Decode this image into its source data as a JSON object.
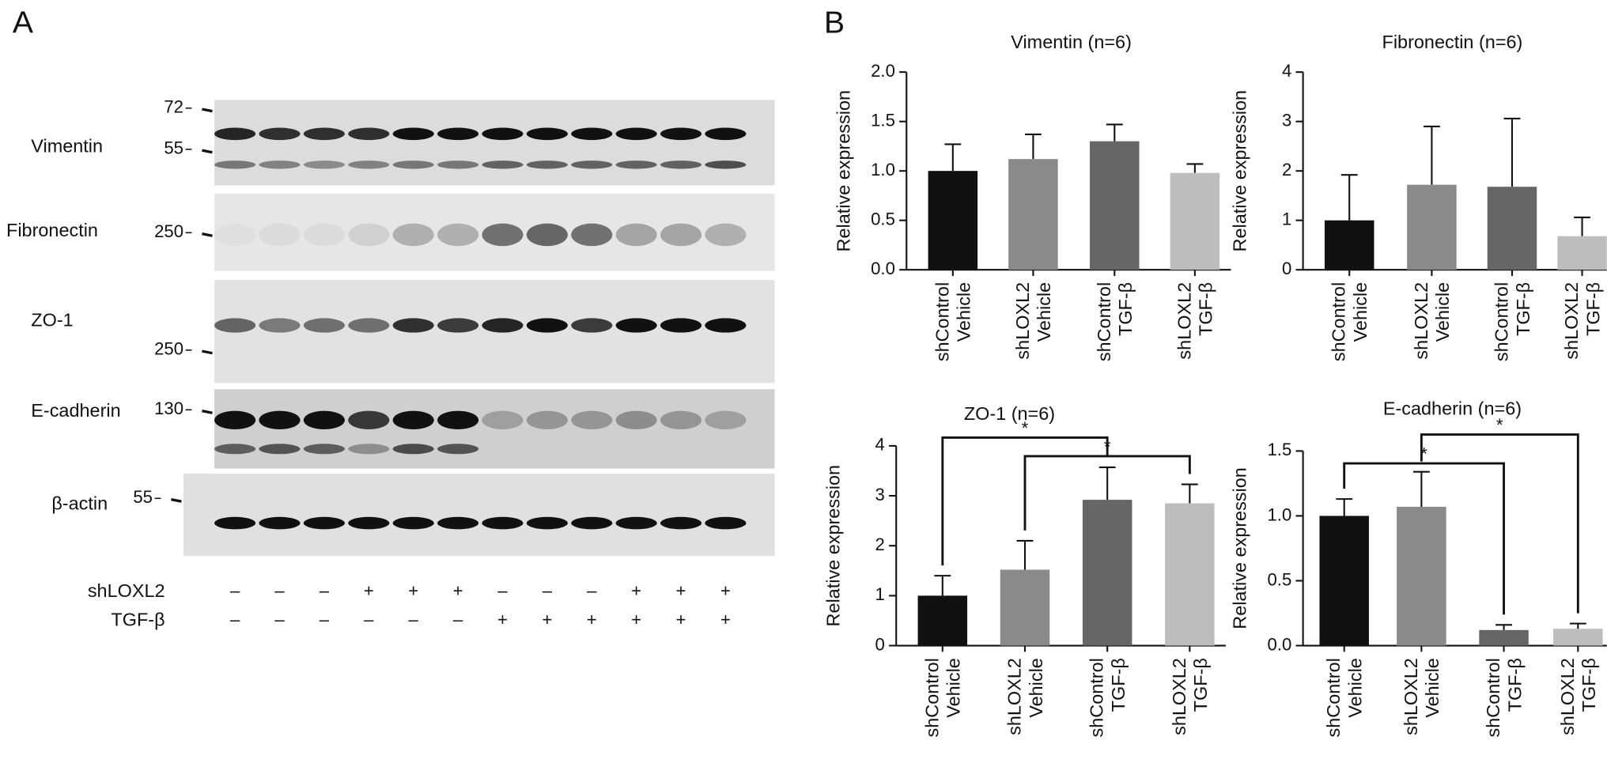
{
  "panel_labels": [
    "A",
    "B"
  ],
  "blot": {
    "rows": [
      {
        "label": "Vimentin",
        "markers": [
          72,
          55
        ]
      },
      {
        "label": "Fibronectin",
        "markers": [
          250
        ]
      },
      {
        "label": "ZO-1",
        "markers": [
          250
        ]
      },
      {
        "label": "E-cadherin",
        "markers": [
          130
        ]
      },
      {
        "label": "β-actin",
        "markers": [
          55
        ]
      }
    ],
    "conditions": [
      {
        "label": "shLOXL2",
        "signs": [
          "–",
          "–",
          "–",
          "+",
          "+",
          "+",
          "–",
          "–",
          "–",
          "+",
          "+",
          "+"
        ]
      },
      {
        "label": "TGF-β",
        "signs": [
          "–",
          "–",
          "–",
          "–",
          "–",
          "–",
          "+",
          "+",
          "+",
          "+",
          "+",
          "+"
        ]
      }
    ]
  },
  "chart_data": [
    {
      "type": "bar",
      "title": "Vimentin (n=6)",
      "ylabel": "Relative expression",
      "categories": [
        [
          "shControl",
          "Vehicle"
        ],
        [
          "shLOXL2",
          "Vehicle"
        ],
        [
          "shControl",
          "TGF-β"
        ],
        [
          "shLOXL2",
          "TGF-β"
        ]
      ],
      "values": [
        1.0,
        1.12,
        1.3,
        0.98
      ],
      "errors": [
        0.27,
        0.25,
        0.17,
        0.09
      ],
      "colors": [
        "#111111",
        "#8a8a8a",
        "#666666",
        "#bdbdbd"
      ],
      "ylim": [
        0,
        2
      ],
      "yticks": [
        {
          "value": 0,
          "label": "0.0"
        },
        0.5,
        {
          "value": 1,
          "label": "1.0"
        },
        1.5,
        {
          "value": 2,
          "label": "2.0"
        }
      ]
    },
    {
      "type": "bar",
      "title": "Fibronectin (n=6)",
      "ylabel": "Relative expression",
      "categories": [
        [
          "shControl",
          "Vehicle"
        ],
        [
          "shLOXL2",
          "Vehicle"
        ],
        [
          "shControl",
          "TGF-β"
        ],
        [
          "shLOXL2",
          "TGF-β"
        ]
      ],
      "values": [
        1.0,
        1.72,
        1.68,
        0.68
      ],
      "errors": [
        0.92,
        1.18,
        1.38,
        0.38
      ],
      "colors": [
        "#111111",
        "#8a8a8a",
        "#666666",
        "#bdbdbd"
      ],
      "ylim": [
        0,
        4
      ],
      "yticks": [
        0,
        1,
        2,
        3,
        4
      ]
    },
    {
      "type": "bar",
      "title": "ZO-1 (n=6)",
      "ylabel": "Relative expression",
      "categories": [
        [
          "shControl",
          "Vehicle"
        ],
        [
          "shLOXL2",
          "Vehicle"
        ],
        [
          "shControl",
          "TGF-β"
        ],
        [
          "shLOXL2",
          "TGF-β"
        ]
      ],
      "values": [
        1.0,
        1.52,
        2.92,
        2.85
      ],
      "errors": [
        0.4,
        0.58,
        0.65,
        0.38
      ],
      "colors": [
        "#111111",
        "#8a8a8a",
        "#666666",
        "#bdbdbd"
      ],
      "ylim": [
        0,
        4
      ],
      "yticks": [
        0,
        1,
        2,
        3,
        4
      ],
      "significance": [
        {
          "from": 0,
          "to": 2,
          "label": "*"
        },
        {
          "from": 1,
          "to": 3,
          "label": "*"
        }
      ]
    },
    {
      "type": "bar",
      "title": "E-cadherin (n=6)",
      "ylabel": "Relative expression",
      "categories": [
        [
          "shControl",
          "Vehicle"
        ],
        [
          "shLOXL2",
          "Vehicle"
        ],
        [
          "shControl",
          "TGF-β"
        ],
        [
          "shLOXL2",
          "TGF-β"
        ]
      ],
      "values": [
        1.0,
        1.07,
        0.12,
        0.13
      ],
      "errors": [
        0.13,
        0.27,
        0.04,
        0.04
      ],
      "colors": [
        "#111111",
        "#8a8a8a",
        "#666666",
        "#bdbdbd"
      ],
      "ylim": [
        0,
        1.5
      ],
      "yticks": [
        {
          "value": 0,
          "label": "0.0"
        },
        0.5,
        {
          "value": 1,
          "label": "1.0"
        },
        1.5
      ],
      "significance": [
        {
          "from": 0,
          "to": 2,
          "label": "*"
        },
        {
          "from": 1,
          "to": 3,
          "label": "*"
        }
      ]
    }
  ]
}
